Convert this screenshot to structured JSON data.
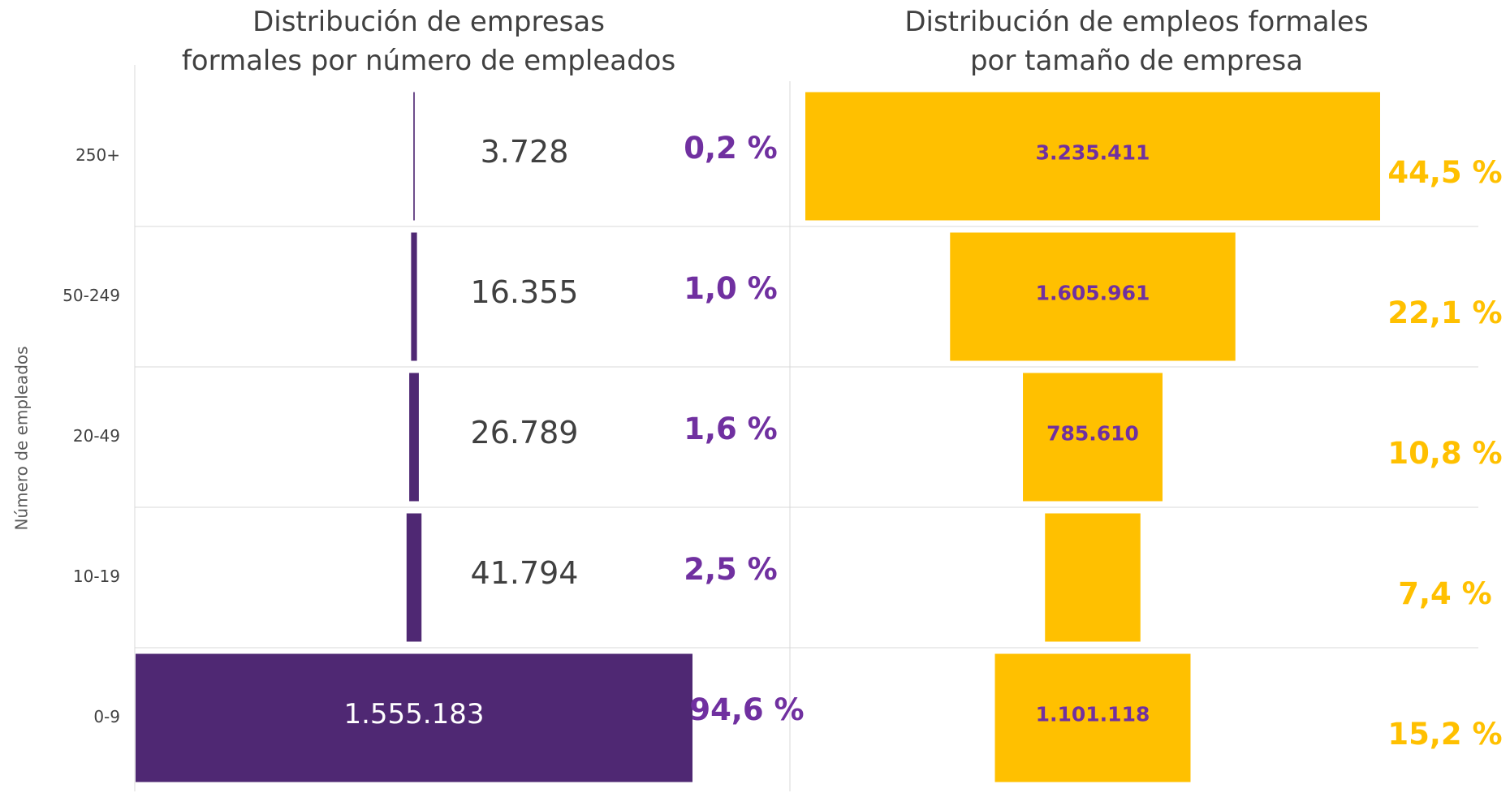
{
  "chart_data": [
    {
      "type": "funnel-bar",
      "title": "Distribución de empresas formales por número de empleados",
      "y_label": "Número de empleados",
      "categories": [
        "250+",
        "50-249",
        "20-49",
        "10-19",
        "0-9"
      ],
      "values": [
        3728,
        16355,
        26789,
        41794,
        1555183
      ],
      "value_labels": [
        "3.728",
        "16.355",
        "26.789",
        "41.794",
        "1.555.183"
      ],
      "color": "#4f2873",
      "share_values": [
        0.2,
        1.0,
        1.6,
        2.5,
        94.6
      ],
      "share_labels": [
        "0,2 %",
        "1,0 %",
        "1,6 %",
        "2,5 %",
        "94,6 %"
      ],
      "share_color": "#7030a0"
    },
    {
      "type": "funnel-bar",
      "title": "Distribución de empleos formales por tamaño de empresa",
      "values": [
        3235411,
        1605961,
        785610,
        537000,
        1101118
      ],
      "value_labels": [
        "3.235.411",
        "1.605.961",
        "785.610",
        null,
        "1.101.118"
      ],
      "color": "#ffc000",
      "share_values": [
        44.5,
        22.1,
        10.8,
        7.4,
        15.2
      ],
      "share_labels": [
        "44,5 %",
        "22,1 %",
        "10,8 %",
        "7,4 %",
        "15,2 %"
      ],
      "share_color": "#ffc000"
    }
  ]
}
